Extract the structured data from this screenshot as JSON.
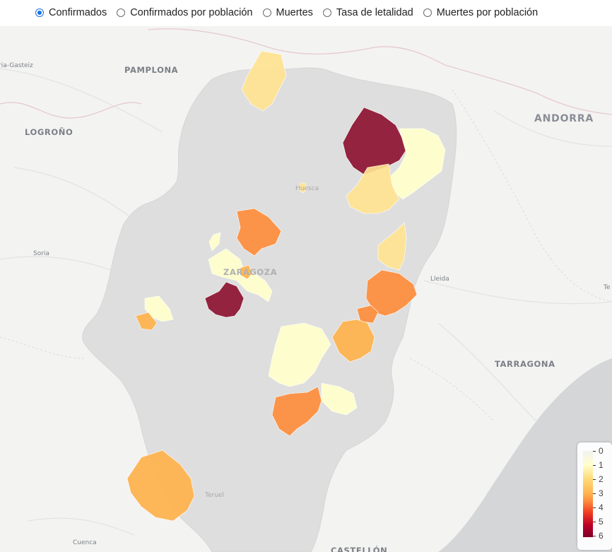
{
  "variable_selector": {
    "options": [
      {
        "label": "Confirmados",
        "checked": true
      },
      {
        "label": "Confirmados por población",
        "checked": false
      },
      {
        "label": "Muertes",
        "checked": false
      },
      {
        "label": "Tasa de letalidad",
        "checked": false
      },
      {
        "label": "Muertes por población",
        "checked": false
      }
    ]
  },
  "map": {
    "place_labels": {
      "gasteiz": "ria-Gasteiz",
      "pamplona": "PAMPLONA",
      "logrono": "LOGROÑO",
      "andorra": "ANDORRA",
      "soria": "Soria",
      "huesca": "Huesca",
      "zaragoza": "ZARAGOZA",
      "lleida": "Lleida",
      "tarragona": "TARRAGONA",
      "teruel": "Teruel",
      "cuenca": "Cuenca",
      "castellon": "CASTELLÓN",
      "te": "Te"
    },
    "choropleth": {
      "color_scale": [
        "#f1f1f1",
        "#ffffcc",
        "#fed976",
        "#feb24c",
        "#fd8d3c",
        "#f03b20",
        "#bd0026",
        "#800026"
      ],
      "regions": [
        {
          "id": "north-jacetania",
          "value": 2
        },
        {
          "id": "sobrarbe",
          "value": 6
        },
        {
          "id": "ribagorza",
          "value": 1
        },
        {
          "id": "somontano",
          "value": 2
        },
        {
          "id": "huesca-city",
          "value": 2
        },
        {
          "id": "monegros",
          "value": 4
        },
        {
          "id": "cinco-villas-strip",
          "value": 1
        },
        {
          "id": "zaragoza-area",
          "value": 1
        },
        {
          "id": "zaragoza-center",
          "value": 3
        },
        {
          "id": "valdejalon",
          "value": 6
        },
        {
          "id": "la-litera",
          "value": 2
        },
        {
          "id": "bajo-cinca",
          "value": 4
        },
        {
          "id": "fraga-part",
          "value": 4
        },
        {
          "id": "bajo-aragon-caspe",
          "value": 3
        },
        {
          "id": "campo-belchite",
          "value": 1
        },
        {
          "id": "bajo-martin",
          "value": 1
        },
        {
          "id": "andorra-sierra",
          "value": 4
        },
        {
          "id": "calatayud-east",
          "value": 1
        },
        {
          "id": "calatayud-west",
          "value": 3
        },
        {
          "id": "albarracin",
          "value": 3
        }
      ]
    }
  },
  "legend": {
    "ticks": [
      "0",
      "1",
      "2",
      "3",
      "4",
      "5",
      "6"
    ]
  }
}
